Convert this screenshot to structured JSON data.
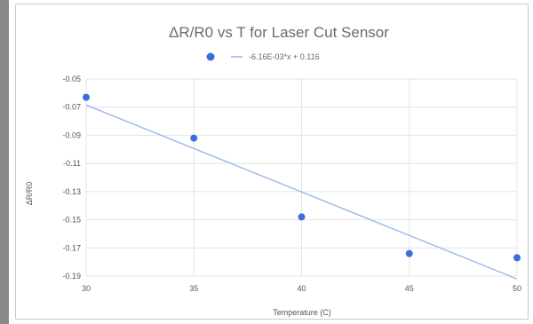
{
  "chart_data": {
    "type": "scatter",
    "title": "ΔR/R0 vs T for Laser Cut Sensor",
    "xlabel": "Temperature (C)",
    "ylabel": "ΔR/R0",
    "xlim": [
      30,
      50
    ],
    "ylim": [
      -0.19,
      -0.05
    ],
    "xticks": [
      "30",
      "35",
      "40",
      "45",
      "50"
    ],
    "yticks": [
      "-0.05",
      "-0.07",
      "-0.09",
      "-0.11",
      "-0.13",
      "-0.15",
      "-0.17",
      "-0.19"
    ],
    "grid": true,
    "legend": "top",
    "series": [
      {
        "x": [
          30,
          35,
          40,
          45,
          50
        ],
        "y": [
          -0.063,
          -0.092,
          -0.148,
          -0.174,
          -0.177
        ]
      }
    ],
    "trendline": {
      "label": "-6.16E-03*x + 0.116",
      "slope": -0.00616,
      "intercept": 0.116
    },
    "colors": {
      "point": "#3a6fd8",
      "trendline": "#93b3ea",
      "grid": "#e4e4e4"
    }
  }
}
